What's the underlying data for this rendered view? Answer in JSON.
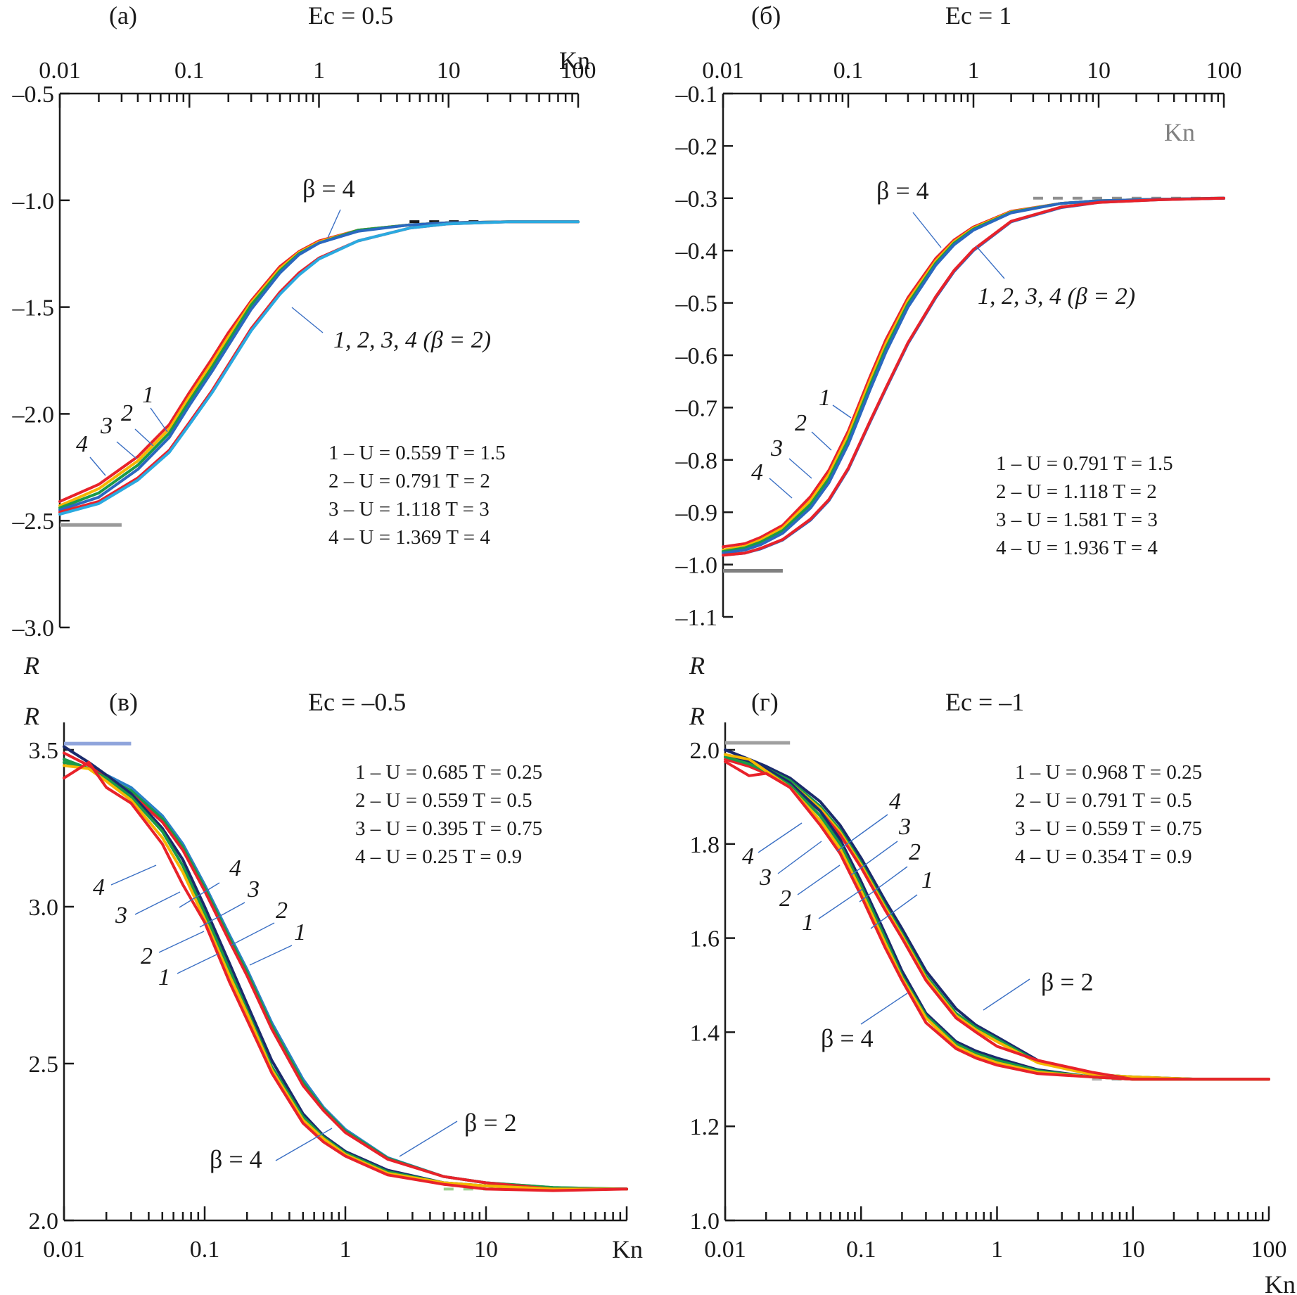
{
  "figure": {
    "r_label": "R",
    "kn_label": "Kn"
  },
  "chart_data": [
    {
      "id": "a",
      "type": "line",
      "panel_label": "(a)",
      "title": "Ec = 0.5",
      "xlabel": "Kn",
      "ylabel": "R",
      "xscale": "log",
      "xlim": [
        0.01,
        100
      ],
      "ylim": [
        -3.0,
        -0.5
      ],
      "x_axis_position": "top",
      "x_ticks": [
        0.01,
        0.1,
        1,
        10,
        100
      ],
      "x_tick_labels": [
        "0.01",
        "0.1",
        "1",
        "10",
        "100"
      ],
      "y_ticks": [
        -0.5,
        -1.0,
        -1.5,
        -2.0,
        -2.5,
        -3.0
      ],
      "y_tick_labels": [
        "–0.5",
        "–1.0",
        "–1.5",
        "–2.0",
        "–2.5",
        "–3.0"
      ],
      "legend": [
        "1 – U = 0.559 T = 1.5",
        "2 – U = 0.791 T = 2",
        "3 – U = 1.118 T = 3",
        "4 – U = 1.369 T = 4"
      ],
      "legend_position": "center-right",
      "annotations": [
        "β = 4",
        "1, 2, 3, 4 (β = 2)",
        "1",
        "2",
        "3",
        "4"
      ],
      "asymptotes": [
        {
          "value": -2.52,
          "xrange": [
            0.01,
            0.03
          ],
          "color": "#9a9a9a",
          "style": "solid"
        },
        {
          "value": -1.1,
          "xrange": [
            5,
            20
          ],
          "color": "#1a1a1a",
          "style": "dashed"
        }
      ],
      "x": [
        0.01,
        0.02,
        0.04,
        0.07,
        0.1,
        0.15,
        0.2,
        0.3,
        0.5,
        0.7,
        1,
        2,
        5,
        10,
        30,
        100
      ],
      "series": [
        {
          "name": "4 (β = 4)",
          "color": "#e8222a",
          "values": [
            -2.41,
            -2.33,
            -2.2,
            -2.05,
            -1.9,
            -1.74,
            -1.62,
            -1.47,
            -1.31,
            -1.24,
            -1.19,
            -1.14,
            -1.115,
            -1.105,
            -1.1,
            -1.1
          ]
        },
        {
          "name": "3 (β = 4)",
          "color": "#f5b700",
          "values": [
            -2.43,
            -2.35,
            -2.22,
            -2.07,
            -1.92,
            -1.76,
            -1.64,
            -1.48,
            -1.32,
            -1.245,
            -1.195,
            -1.14,
            -1.115,
            -1.105,
            -1.1,
            -1.1
          ]
        },
        {
          "name": "2 (β = 4)",
          "color": "#1a9a48",
          "values": [
            -2.44,
            -2.37,
            -2.24,
            -2.09,
            -1.94,
            -1.78,
            -1.66,
            -1.49,
            -1.33,
            -1.25,
            -1.2,
            -1.14,
            -1.115,
            -1.105,
            -1.1,
            -1.1
          ]
        },
        {
          "name": "1 (β = 4)",
          "color": "#2a68c0",
          "values": [
            -2.45,
            -2.39,
            -2.26,
            -2.11,
            -1.96,
            -1.8,
            -1.68,
            -1.51,
            -1.34,
            -1.255,
            -1.2,
            -1.145,
            -1.115,
            -1.105,
            -1.1,
            -1.1
          ]
        },
        {
          "name": "β = 2 (curve a)",
          "color": "#e8222a",
          "values": [
            -2.46,
            -2.41,
            -2.3,
            -2.17,
            -2.04,
            -1.89,
            -1.77,
            -1.6,
            -1.43,
            -1.34,
            -1.27,
            -1.19,
            -1.13,
            -1.11,
            -1.1,
            -1.1
          ]
        },
        {
          "name": "β = 2 (curve b)",
          "color": "#2aaae0",
          "values": [
            -2.47,
            -2.42,
            -2.31,
            -2.18,
            -2.05,
            -1.9,
            -1.78,
            -1.61,
            -1.44,
            -1.35,
            -1.275,
            -1.19,
            -1.13,
            -1.11,
            -1.1,
            -1.1
          ]
        }
      ]
    },
    {
      "id": "b",
      "type": "line",
      "panel_label": "(б)",
      "title": "Ec = 1",
      "xlabel": "Kn",
      "ylabel": "R",
      "xscale": "log",
      "xlim": [
        0.01,
        100
      ],
      "ylim": [
        -1.1,
        -0.1
      ],
      "x_axis_position": "top",
      "x_ticks": [
        0.01,
        0.1,
        1,
        10,
        100
      ],
      "x_tick_labels": [
        "0.01",
        "0.1",
        "1",
        "10",
        "100"
      ],
      "y_ticks": [
        -0.1,
        -0.2,
        -0.3,
        -0.4,
        -0.5,
        -0.6,
        -0.7,
        -0.8,
        -0.9,
        -1.0,
        -1.1
      ],
      "y_tick_labels": [
        "–0.1",
        "–0.2",
        "–0.3",
        "–0.4",
        "–0.5",
        "–0.6",
        "–0.7",
        "–0.8",
        "–0.9",
        "–1.0",
        "–1.1"
      ],
      "legend": [
        "1 – U = 0.791 T = 1.5",
        "2 – U = 1.118 T = 2",
        "3 – U = 1.581 T = 3",
        "4 – U = 1.936 T = 4"
      ],
      "legend_position": "center-right",
      "annotations": [
        "β = 4",
        "1, 2, 3, 4 (β = 2)",
        "1",
        "2",
        "3",
        "4",
        "Kn"
      ],
      "asymptotes": [
        {
          "value": -1.012,
          "xrange": [
            0.01,
            0.03
          ],
          "color": "#808080",
          "style": "solid"
        },
        {
          "value": -0.3,
          "xrange": [
            3,
            100
          ],
          "color": "#909090",
          "style": "dashed"
        }
      ],
      "x": [
        0.01,
        0.015,
        0.02,
        0.03,
        0.05,
        0.07,
        0.1,
        0.15,
        0.2,
        0.3,
        0.5,
        0.7,
        1,
        2,
        5,
        10,
        30,
        100
      ],
      "series": [
        {
          "name": "4 (β = 4)",
          "color": "#e8222a",
          "values": [
            -0.966,
            -0.96,
            -0.948,
            -0.925,
            -0.87,
            -0.82,
            -0.745,
            -0.64,
            -0.57,
            -0.49,
            -0.415,
            -0.38,
            -0.355,
            -0.325,
            -0.31,
            -0.305,
            -0.302,
            -0.3
          ]
        },
        {
          "name": "3 (β = 4)",
          "color": "#f5b700",
          "values": [
            -0.972,
            -0.965,
            -0.953,
            -0.93,
            -0.878,
            -0.828,
            -0.753,
            -0.648,
            -0.578,
            -0.496,
            -0.42,
            -0.383,
            -0.357,
            -0.326,
            -0.31,
            -0.305,
            -0.302,
            -0.3
          ]
        },
        {
          "name": "2 (β = 4)",
          "color": "#1a9a48",
          "values": [
            -0.975,
            -0.968,
            -0.957,
            -0.935,
            -0.885,
            -0.836,
            -0.762,
            -0.657,
            -0.586,
            -0.502,
            -0.424,
            -0.386,
            -0.359,
            -0.327,
            -0.31,
            -0.305,
            -0.302,
            -0.3
          ]
        },
        {
          "name": "1 (β = 4)",
          "color": "#2a68c0",
          "values": [
            -0.978,
            -0.972,
            -0.962,
            -0.94,
            -0.892,
            -0.844,
            -0.77,
            -0.665,
            -0.594,
            -0.508,
            -0.428,
            -0.389,
            -0.361,
            -0.328,
            -0.31,
            -0.305,
            -0.302,
            -0.3
          ]
        },
        {
          "name": "β = 2 (curve a)",
          "color": "#2a68c0",
          "values": [
            -0.982,
            -0.978,
            -0.97,
            -0.953,
            -0.915,
            -0.878,
            -0.818,
            -0.727,
            -0.664,
            -0.578,
            -0.49,
            -0.44,
            -0.4,
            -0.345,
            -0.318,
            -0.308,
            -0.303,
            -0.3
          ]
        },
        {
          "name": "β = 2 (curve b)",
          "color": "#e8222a",
          "values": [
            -0.982,
            -0.978,
            -0.969,
            -0.952,
            -0.913,
            -0.876,
            -0.816,
            -0.725,
            -0.662,
            -0.576,
            -0.488,
            -0.438,
            -0.398,
            -0.344,
            -0.317,
            -0.308,
            -0.303,
            -0.3
          ]
        }
      ]
    },
    {
      "id": "c",
      "type": "line",
      "panel_label": "(в)",
      "title": "Ec = –0.5",
      "xlabel": "Kn",
      "ylabel": "R",
      "xscale": "log",
      "xlim": [
        0.01,
        100
      ],
      "ylim": [
        2.0,
        3.6
      ],
      "x_axis_position": "bottom",
      "x_ticks": [
        0.01,
        0.1,
        1,
        10
      ],
      "x_tick_labels": [
        "0.01",
        "0.1",
        "1",
        "10"
      ],
      "y_ticks": [
        2.0,
        2.5,
        3.0,
        3.5
      ],
      "y_tick_labels": [
        "2.0",
        "2.5",
        "3.0",
        "3.5"
      ],
      "legend": [
        "1 – U = 0.685 T = 0.25",
        "2 – U = 0.559 T = 0.5",
        "3 – U = 0.395 T = 0.75",
        "4 – U = 0.25 T = 0.9"
      ],
      "legend_position": "top-right",
      "annotations": [
        "β = 2",
        "β = 4",
        "1",
        "2",
        "3",
        "4",
        "1",
        "2",
        "3",
        "4"
      ],
      "asymptotes": [
        {
          "value": 3.52,
          "xrange": [
            0.01,
            0.03
          ],
          "color": "#8fa4dc",
          "style": "solid"
        },
        {
          "value": 2.1,
          "xrange": [
            5,
            12
          ],
          "color": "#9ccf8f",
          "style": "dashed"
        }
      ],
      "x": [
        0.01,
        0.015,
        0.02,
        0.03,
        0.05,
        0.07,
        0.1,
        0.15,
        0.2,
        0.3,
        0.5,
        0.7,
        1,
        2,
        5,
        10,
        30,
        100
      ],
      "series": [
        {
          "name": "β = 2, 1",
          "color": "#2a80c8",
          "values": [
            3.47,
            3.44,
            3.42,
            3.38,
            3.29,
            3.2,
            3.07,
            2.91,
            2.8,
            2.63,
            2.45,
            2.36,
            2.29,
            2.2,
            2.14,
            2.12,
            2.105,
            2.1
          ]
        },
        {
          "name": "β = 2, 2",
          "color": "#1a9a48",
          "values": [
            3.47,
            3.44,
            3.41,
            3.37,
            3.28,
            3.19,
            3.06,
            2.9,
            2.79,
            2.62,
            2.44,
            2.355,
            2.285,
            2.198,
            2.14,
            2.12,
            2.105,
            2.1
          ]
        },
        {
          "name": "β = 2, 3",
          "color": "#e8222a",
          "values": [
            3.49,
            3.45,
            3.41,
            3.36,
            3.27,
            3.18,
            3.05,
            2.89,
            2.78,
            2.61,
            2.43,
            2.35,
            2.28,
            2.195,
            2.14,
            2.12,
            2.1,
            2.1
          ]
        },
        {
          "name": "β = 4, 4",
          "color": "#1a2a6c",
          "values": [
            3.51,
            3.46,
            3.42,
            3.36,
            3.25,
            3.15,
            3.0,
            2.82,
            2.69,
            2.51,
            2.34,
            2.27,
            2.22,
            2.16,
            2.12,
            2.11,
            2.1,
            2.1
          ]
        },
        {
          "name": "β = 4, 3",
          "color": "#1a9a48",
          "values": [
            3.46,
            3.44,
            3.41,
            3.35,
            3.24,
            3.13,
            2.98,
            2.8,
            2.67,
            2.49,
            2.33,
            2.265,
            2.215,
            2.155,
            2.12,
            2.11,
            2.1,
            2.1
          ]
        },
        {
          "name": "β = 4, 2",
          "color": "#f5b700",
          "values": [
            3.45,
            3.44,
            3.4,
            3.34,
            3.22,
            3.11,
            2.96,
            2.78,
            2.66,
            2.48,
            2.32,
            2.26,
            2.21,
            2.15,
            2.12,
            2.11,
            2.1,
            2.1
          ]
        },
        {
          "name": "β = 4, 1",
          "color": "#e8222a",
          "values": [
            3.41,
            3.46,
            3.38,
            3.33,
            3.2,
            3.07,
            2.95,
            2.76,
            2.64,
            2.47,
            2.31,
            2.25,
            2.205,
            2.145,
            2.115,
            2.1,
            2.095,
            2.1
          ]
        }
      ]
    },
    {
      "id": "d",
      "type": "line",
      "panel_label": "(г)",
      "title": "Ec = –1",
      "xlabel": "Kn",
      "ylabel": "R",
      "xscale": "log",
      "xlim": [
        0.01,
        100
      ],
      "ylim": [
        1.0,
        2.05
      ],
      "x_axis_position": "bottom",
      "x_ticks": [
        0.01,
        0.1,
        1,
        10,
        100
      ],
      "x_tick_labels": [
        "0.01",
        "0.1",
        "1",
        "10",
        "100"
      ],
      "y_ticks": [
        1.0,
        1.2,
        1.4,
        1.6,
        1.8,
        2.0
      ],
      "y_tick_labels": [
        "1.0",
        "1.2",
        "1.4",
        "1.6",
        "1.8",
        "2.0"
      ],
      "legend": [
        "1 – U = 0.968 T = 0.25",
        "2 – U = 0.791 T = 0.5",
        "3 – U = 0.559 T = 0.75",
        "4 – U = 0.354 T = 0.9"
      ],
      "legend_position": "top-right",
      "annotations": [
        "β = 2",
        "β = 4",
        "1",
        "2",
        "3",
        "4"
      ],
      "asymptotes": [
        {
          "value": 2.015,
          "xrange": [
            0.01,
            0.03
          ],
          "color": "#a0a0a0",
          "style": "solid"
        },
        {
          "value": 1.3,
          "xrange": [
            5,
            10
          ],
          "color": "#b0b0b0",
          "style": "dashed"
        }
      ],
      "x": [
        0.01,
        0.015,
        0.02,
        0.03,
        0.05,
        0.07,
        0.1,
        0.15,
        0.2,
        0.3,
        0.5,
        0.7,
        1,
        2,
        5,
        10,
        30,
        100
      ],
      "series": [
        {
          "name": "β = 2, 4",
          "color": "#1a2a6c",
          "values": [
            2.0,
            1.98,
            1.965,
            1.94,
            1.89,
            1.84,
            1.77,
            1.68,
            1.62,
            1.53,
            1.45,
            1.415,
            1.39,
            1.34,
            1.31,
            1.305,
            1.3,
            1.3
          ]
        },
        {
          "name": "β = 2, 3",
          "color": "#1a9a48",
          "values": [
            1.99,
            1.975,
            1.96,
            1.935,
            1.88,
            1.83,
            1.76,
            1.67,
            1.61,
            1.52,
            1.44,
            1.41,
            1.385,
            1.337,
            1.31,
            1.305,
            1.3,
            1.3
          ]
        },
        {
          "name": "β = 2, 2",
          "color": "#f5b700",
          "values": [
            1.985,
            1.97,
            1.955,
            1.93,
            1.875,
            1.825,
            1.755,
            1.665,
            1.605,
            1.515,
            1.435,
            1.405,
            1.38,
            1.335,
            1.31,
            1.305,
            1.3,
            1.3
          ]
        },
        {
          "name": "β = 2, 1",
          "color": "#e8222a",
          "values": [
            1.98,
            1.965,
            1.95,
            1.925,
            1.87,
            1.82,
            1.75,
            1.66,
            1.6,
            1.51,
            1.43,
            1.4,
            1.37,
            1.34,
            1.315,
            1.3,
            1.3,
            1.3
          ]
        },
        {
          "name": "β = 4, 4",
          "color": "#1a2a6c",
          "values": [
            1.99,
            1.975,
            1.96,
            1.93,
            1.87,
            1.81,
            1.72,
            1.61,
            1.53,
            1.44,
            1.38,
            1.36,
            1.345,
            1.32,
            1.305,
            1.3,
            1.3,
            1.3
          ]
        },
        {
          "name": "β = 4, 3",
          "color": "#1a9a48",
          "values": [
            1.985,
            1.97,
            1.955,
            1.925,
            1.86,
            1.8,
            1.71,
            1.6,
            1.52,
            1.435,
            1.375,
            1.355,
            1.34,
            1.318,
            1.305,
            1.3,
            1.3,
            1.3
          ]
        },
        {
          "name": "β = 4, 2",
          "color": "#f5b700",
          "values": [
            1.99,
            1.98,
            1.955,
            1.92,
            1.85,
            1.79,
            1.7,
            1.59,
            1.515,
            1.43,
            1.37,
            1.35,
            1.335,
            1.315,
            1.305,
            1.3,
            1.3,
            1.3
          ]
        },
        {
          "name": "β = 4, 1",
          "color": "#e8222a",
          "values": [
            1.975,
            1.945,
            1.95,
            1.92,
            1.84,
            1.78,
            1.69,
            1.58,
            1.51,
            1.42,
            1.365,
            1.345,
            1.33,
            1.312,
            1.305,
            1.3,
            1.3,
            1.3
          ]
        }
      ]
    }
  ]
}
